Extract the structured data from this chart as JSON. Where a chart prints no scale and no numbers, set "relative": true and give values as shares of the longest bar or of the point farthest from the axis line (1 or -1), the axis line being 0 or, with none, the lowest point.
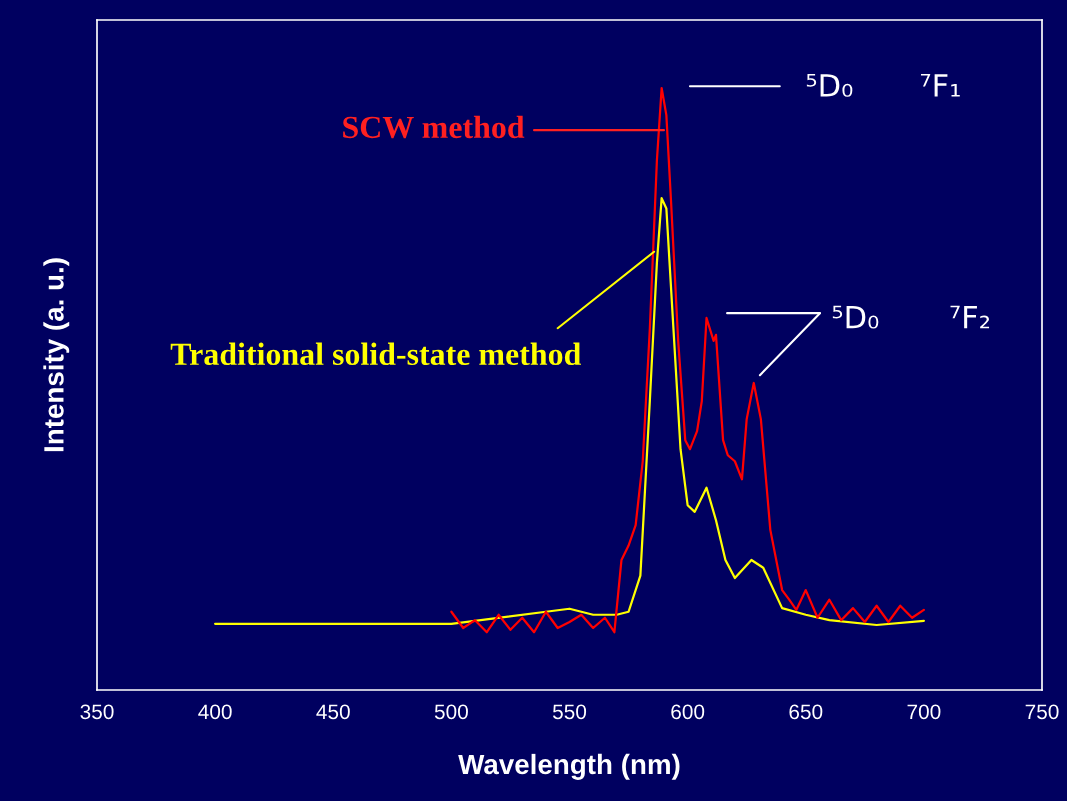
{
  "chart_data": {
    "type": "line",
    "relative": true,
    "xlabel": "Wavelength (nm)",
    "ylabel": "Intensity (a. u.)",
    "xlim": [
      350,
      750
    ],
    "xticks": [
      350,
      400,
      450,
      500,
      550,
      600,
      650,
      700,
      750
    ],
    "tick_labels": "x",
    "grid": false,
    "legend": false,
    "marker": "none",
    "line_style": "solid",
    "series": [
      {
        "color": "#ffff00",
        "x": [
          400,
          450,
          500,
          540,
          550,
          560,
          570,
          575,
          580,
          584,
          587,
          589,
          591,
          594,
          597,
          600,
          603,
          608,
          612,
          616,
          620,
          627,
          632,
          640,
          650,
          660,
          680,
          700
        ],
        "values": [
          0.11,
          0.11,
          0.11,
          0.13,
          0.135,
          0.125,
          0.125,
          0.13,
          0.19,
          0.48,
          0.71,
          0.817,
          0.8,
          0.6,
          0.4,
          0.307,
          0.296,
          0.336,
          0.282,
          0.216,
          0.186,
          0.216,
          0.203,
          0.136,
          0.125,
          0.116,
          0.108,
          0.115
        ]
      },
      {
        "color": "#ff0000",
        "x": [
          500,
          505,
          510,
          515,
          520,
          525,
          530,
          535,
          540,
          545,
          550,
          555,
          560,
          565,
          569,
          572,
          575,
          578,
          581,
          584,
          587,
          589,
          591,
          593,
          596,
          599,
          601,
          604,
          606,
          608,
          611,
          612,
          615,
          617,
          620,
          623,
          625,
          628,
          631,
          635,
          640,
          643,
          646,
          650,
          655,
          660,
          665,
          670,
          675,
          680,
          685,
          690,
          695,
          700
        ],
        "values": [
          0.13,
          0.103,
          0.116,
          0.096,
          0.125,
          0.1,
          0.12,
          0.096,
          0.13,
          0.103,
          0.113,
          0.125,
          0.103,
          0.12,
          0.096,
          0.216,
          0.24,
          0.274,
          0.38,
          0.6,
          0.88,
          1.0,
          0.955,
          0.81,
          0.58,
          0.415,
          0.4,
          0.43,
          0.48,
          0.618,
          0.58,
          0.59,
          0.415,
          0.39,
          0.38,
          0.35,
          0.45,
          0.51,
          0.45,
          0.266,
          0.166,
          0.15,
          0.133,
          0.166,
          0.12,
          0.15,
          0.116,
          0.136,
          0.113,
          0.14,
          0.113,
          0.14,
          0.12,
          0.133
        ]
      }
    ],
    "annotations": [
      {
        "text": "SCW method",
        "x": 590,
        "y": 0.93
      },
      {
        "text": "Traditional solid-state method",
        "x": 585.8,
        "y": 0.728
      },
      "⁵D₀",
      "⁷F₁",
      "⁵D₀",
      "⁷F₂"
    ]
  }
}
